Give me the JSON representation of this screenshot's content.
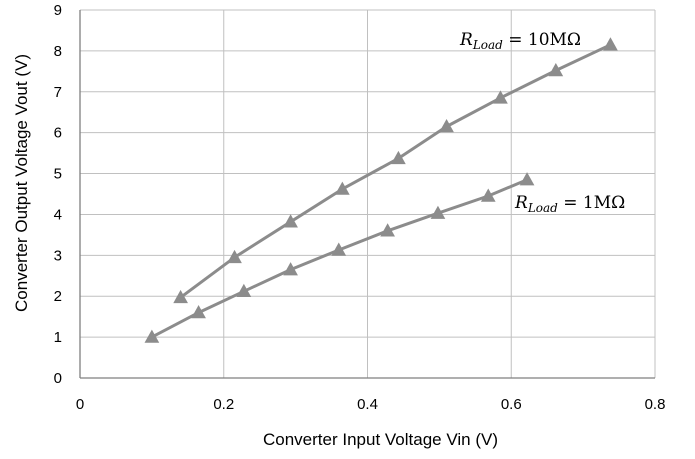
{
  "chart_data": {
    "type": "line",
    "xlabel": "Converter Input Voltage Vin (V)",
    "ylabel": "Converter Output Voltage Vout (V)",
    "xlim": [
      0,
      0.8
    ],
    "ylim": [
      0,
      9
    ],
    "x_ticks": [
      "0",
      "0.2",
      "0.4",
      "0.6",
      "0.8"
    ],
    "y_ticks": [
      "0",
      "1",
      "2",
      "3",
      "4",
      "5",
      "6",
      "7",
      "8",
      "9"
    ],
    "grid": true,
    "colors": {
      "line": "#8c8c8c",
      "marker": "#8c8c8c",
      "grid": "#c0c0c0",
      "axis": "#7f7f7f"
    },
    "series": [
      {
        "marker": "triangle",
        "label_base": "R",
        "label_sub": "Load",
        "label_rest": " = 10MΩ",
        "x": [
          0.14,
          0.215,
          0.293,
          0.365,
          0.443,
          0.51,
          0.585,
          0.662,
          0.738
        ],
        "y": [
          1.97,
          2.95,
          3.82,
          4.62,
          5.37,
          6.15,
          6.85,
          7.52,
          8.15
        ]
      },
      {
        "marker": "triangle",
        "label_base": "R",
        "label_sub": "Load",
        "label_rest": " = 1MΩ",
        "x": [
          0.1,
          0.165,
          0.228,
          0.293,
          0.36,
          0.428,
          0.498,
          0.568,
          0.622
        ],
        "y": [
          1.0,
          1.6,
          2.12,
          2.65,
          3.13,
          3.6,
          4.03,
          4.45,
          4.85
        ]
      }
    ]
  }
}
